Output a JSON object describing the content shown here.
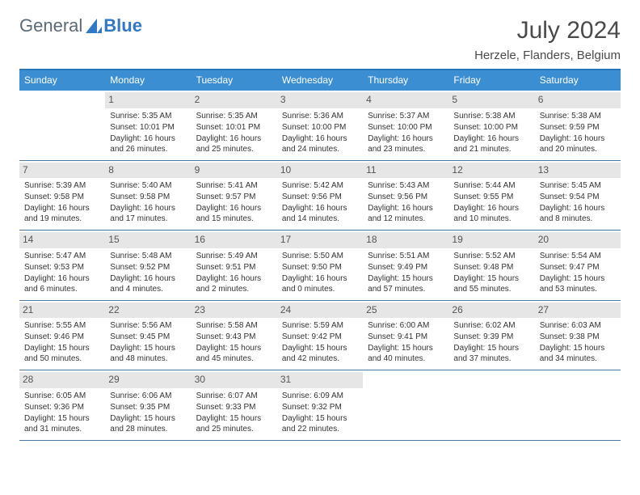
{
  "brand": {
    "text1": "General",
    "text2": "Blue",
    "color1": "#5a6a77",
    "color2": "#3178c6"
  },
  "header": {
    "month": "July 2024",
    "location": "Herzele, Flanders, Belgium"
  },
  "colors": {
    "header_bg": "#3b8ed2",
    "header_text": "#ffffff",
    "top_border": "#2a74bb",
    "week_border": "#4a77a4",
    "daynum_bg": "#e6e6e6",
    "daynum_text": "#555555",
    "body_text": "#333333",
    "page_bg": "#ffffff"
  },
  "daynames": [
    "Sunday",
    "Monday",
    "Tuesday",
    "Wednesday",
    "Thursday",
    "Friday",
    "Saturday"
  ],
  "weeks": [
    [
      null,
      {
        "n": "1",
        "sr": "5:35 AM",
        "ss": "10:01 PM",
        "dl": "16 hours and 26 minutes."
      },
      {
        "n": "2",
        "sr": "5:35 AM",
        "ss": "10:01 PM",
        "dl": "16 hours and 25 minutes."
      },
      {
        "n": "3",
        "sr": "5:36 AM",
        "ss": "10:00 PM",
        "dl": "16 hours and 24 minutes."
      },
      {
        "n": "4",
        "sr": "5:37 AM",
        "ss": "10:00 PM",
        "dl": "16 hours and 23 minutes."
      },
      {
        "n": "5",
        "sr": "5:38 AM",
        "ss": "10:00 PM",
        "dl": "16 hours and 21 minutes."
      },
      {
        "n": "6",
        "sr": "5:38 AM",
        "ss": "9:59 PM",
        "dl": "16 hours and 20 minutes."
      }
    ],
    [
      {
        "n": "7",
        "sr": "5:39 AM",
        "ss": "9:58 PM",
        "dl": "16 hours and 19 minutes."
      },
      {
        "n": "8",
        "sr": "5:40 AM",
        "ss": "9:58 PM",
        "dl": "16 hours and 17 minutes."
      },
      {
        "n": "9",
        "sr": "5:41 AM",
        "ss": "9:57 PM",
        "dl": "16 hours and 15 minutes."
      },
      {
        "n": "10",
        "sr": "5:42 AM",
        "ss": "9:56 PM",
        "dl": "16 hours and 14 minutes."
      },
      {
        "n": "11",
        "sr": "5:43 AM",
        "ss": "9:56 PM",
        "dl": "16 hours and 12 minutes."
      },
      {
        "n": "12",
        "sr": "5:44 AM",
        "ss": "9:55 PM",
        "dl": "16 hours and 10 minutes."
      },
      {
        "n": "13",
        "sr": "5:45 AM",
        "ss": "9:54 PM",
        "dl": "16 hours and 8 minutes."
      }
    ],
    [
      {
        "n": "14",
        "sr": "5:47 AM",
        "ss": "9:53 PM",
        "dl": "16 hours and 6 minutes."
      },
      {
        "n": "15",
        "sr": "5:48 AM",
        "ss": "9:52 PM",
        "dl": "16 hours and 4 minutes."
      },
      {
        "n": "16",
        "sr": "5:49 AM",
        "ss": "9:51 PM",
        "dl": "16 hours and 2 minutes."
      },
      {
        "n": "17",
        "sr": "5:50 AM",
        "ss": "9:50 PM",
        "dl": "16 hours and 0 minutes."
      },
      {
        "n": "18",
        "sr": "5:51 AM",
        "ss": "9:49 PM",
        "dl": "15 hours and 57 minutes."
      },
      {
        "n": "19",
        "sr": "5:52 AM",
        "ss": "9:48 PM",
        "dl": "15 hours and 55 minutes."
      },
      {
        "n": "20",
        "sr": "5:54 AM",
        "ss": "9:47 PM",
        "dl": "15 hours and 53 minutes."
      }
    ],
    [
      {
        "n": "21",
        "sr": "5:55 AM",
        "ss": "9:46 PM",
        "dl": "15 hours and 50 minutes."
      },
      {
        "n": "22",
        "sr": "5:56 AM",
        "ss": "9:45 PM",
        "dl": "15 hours and 48 minutes."
      },
      {
        "n": "23",
        "sr": "5:58 AM",
        "ss": "9:43 PM",
        "dl": "15 hours and 45 minutes."
      },
      {
        "n": "24",
        "sr": "5:59 AM",
        "ss": "9:42 PM",
        "dl": "15 hours and 42 minutes."
      },
      {
        "n": "25",
        "sr": "6:00 AM",
        "ss": "9:41 PM",
        "dl": "15 hours and 40 minutes."
      },
      {
        "n": "26",
        "sr": "6:02 AM",
        "ss": "9:39 PM",
        "dl": "15 hours and 37 minutes."
      },
      {
        "n": "27",
        "sr": "6:03 AM",
        "ss": "9:38 PM",
        "dl": "15 hours and 34 minutes."
      }
    ],
    [
      {
        "n": "28",
        "sr": "6:05 AM",
        "ss": "9:36 PM",
        "dl": "15 hours and 31 minutes."
      },
      {
        "n": "29",
        "sr": "6:06 AM",
        "ss": "9:35 PM",
        "dl": "15 hours and 28 minutes."
      },
      {
        "n": "30",
        "sr": "6:07 AM",
        "ss": "9:33 PM",
        "dl": "15 hours and 25 minutes."
      },
      {
        "n": "31",
        "sr": "6:09 AM",
        "ss": "9:32 PM",
        "dl": "15 hours and 22 minutes."
      },
      null,
      null,
      null
    ]
  ],
  "labels": {
    "sunrise": "Sunrise: ",
    "sunset": "Sunset: ",
    "daylight": "Daylight: "
  }
}
